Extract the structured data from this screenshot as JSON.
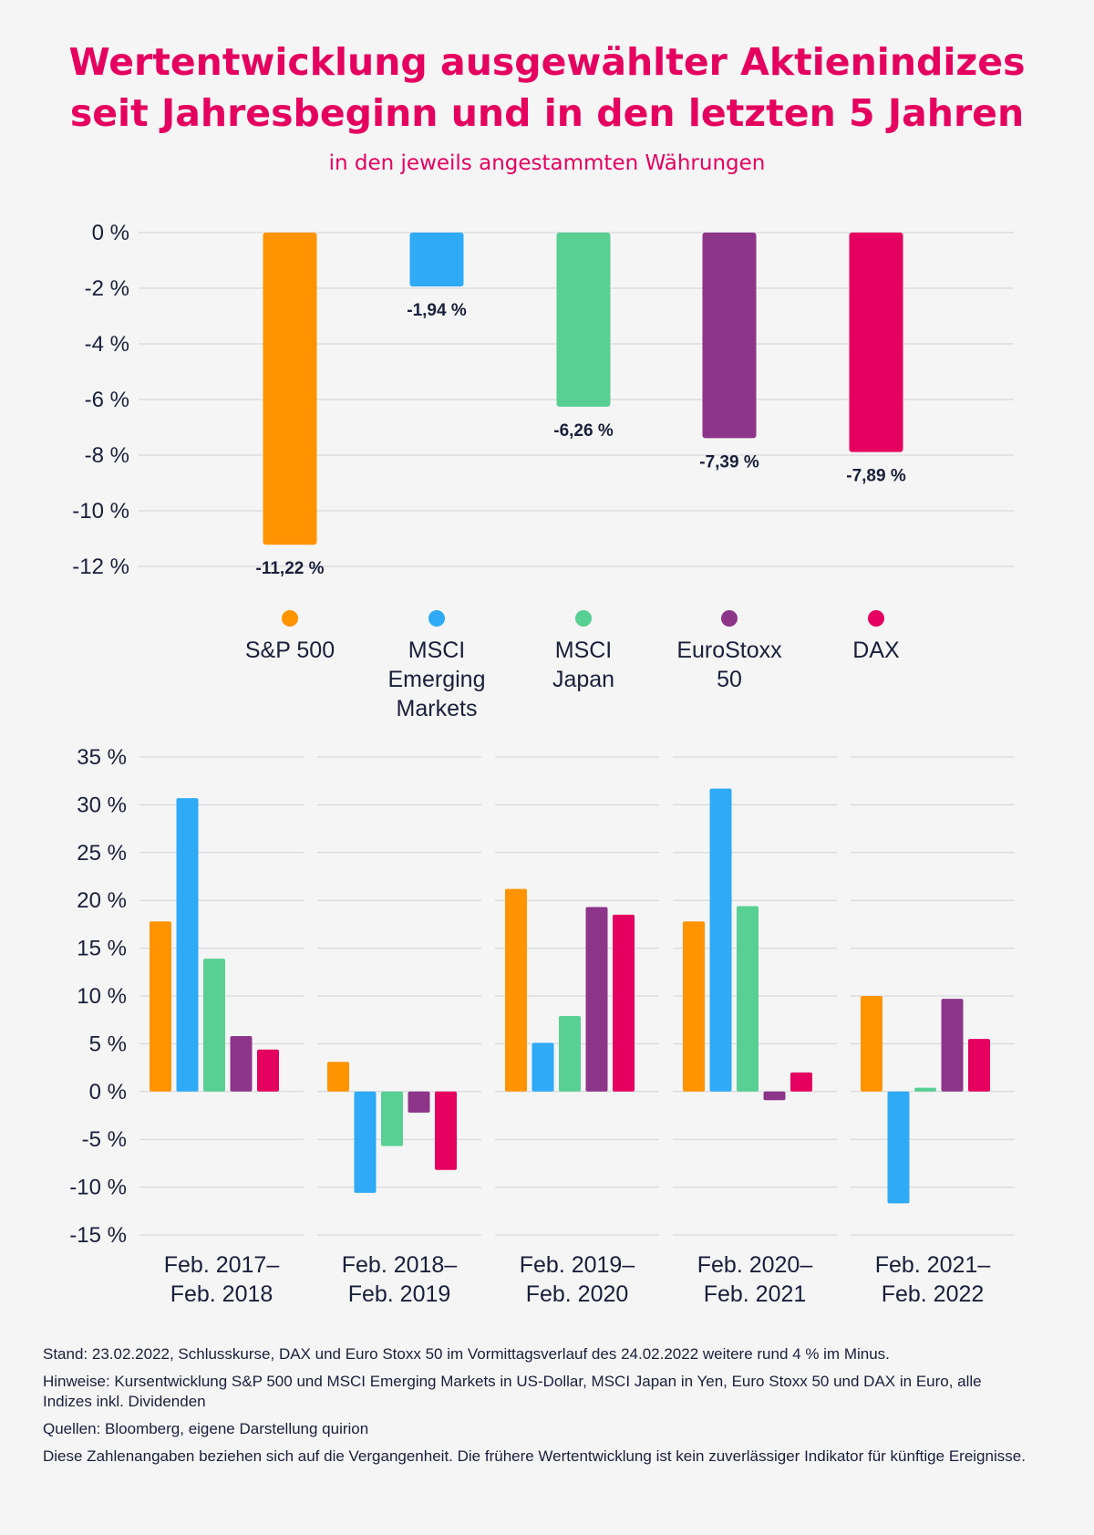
{
  "header": {
    "title_line1": "Wertentwicklung ausgewählter Aktienindizes",
    "title_line2": "seit Jahresbeginn und in den letzten 5 Jahren",
    "subtitle": "in den jeweils angestammten Währungen"
  },
  "chart_data": [
    {
      "type": "bar",
      "title": "",
      "categories": [
        "S&P 500",
        "MSCI Emerging Markets",
        "MSCI Japan",
        "EuroStoxx 50",
        "DAX"
      ],
      "values": [
        -11.22,
        -1.94,
        -6.26,
        -7.39,
        -7.89
      ],
      "value_labels": [
        "-11,22 %",
        "-1,94 %",
        "-6,26 %",
        "-7,39 %",
        "-7,89 %"
      ],
      "colors": [
        "#ff9300",
        "#2eaaf7",
        "#58cf93",
        "#8c3589",
        "#e5005f"
      ],
      "ylim": [
        -12,
        0
      ],
      "yticks": [
        0,
        -2,
        -4,
        -6,
        -8,
        -10,
        -12
      ],
      "ytick_labels": [
        "0 %",
        "-2 %",
        "-4 %",
        "-6 %",
        "-8 %",
        "-10 %",
        "-12 %"
      ],
      "grid": true,
      "legend": {
        "position": "bottom",
        "items": [
          "S&P 500",
          "MSCI\nEmerging\nMarkets",
          "MSCI\nJapan",
          "EuroStoxx 50",
          "DAX"
        ]
      }
    },
    {
      "type": "bar",
      "title": "",
      "categories": [
        "Feb. 2017–\nFeb. 2018",
        "Feb. 2018–\nFeb. 2019",
        "Feb. 2019–\nFeb. 2020",
        "Feb. 2020–\nFeb. 2021",
        "Feb. 2021–\nFeb. 2022"
      ],
      "series": [
        {
          "name": "S&P 500",
          "color": "#ff9300",
          "values": [
            17.8,
            3.1,
            21.2,
            17.8,
            10.0
          ]
        },
        {
          "name": "MSCI Emerging Markets",
          "color": "#2eaaf7",
          "values": [
            30.7,
            -10.6,
            5.1,
            31.7,
            -11.7
          ]
        },
        {
          "name": "MSCI Japan",
          "color": "#58cf93",
          "values": [
            13.9,
            -5.7,
            7.9,
            19.4,
            0.4
          ]
        },
        {
          "name": "EuroStoxx 50",
          "color": "#8c3589",
          "values": [
            5.8,
            -2.2,
            19.3,
            -0.9,
            9.7
          ]
        },
        {
          "name": "DAX",
          "color": "#e5005f",
          "values": [
            4.4,
            -8.2,
            18.5,
            2.0,
            5.5
          ]
        }
      ],
      "ylim": [
        -15,
        35
      ],
      "yticks": [
        35,
        30,
        25,
        20,
        15,
        10,
        5,
        0,
        -5,
        -10,
        -15
      ],
      "ytick_labels": [
        "35 %",
        "30 %",
        "25 %",
        "20 %",
        "15 %",
        "10 %",
        "5 %",
        "0 %",
        "-5 %",
        "-10 %",
        "-15 %"
      ],
      "grid": true
    }
  ],
  "footer": {
    "stand": "Stand: 23.02.2022, Schlusskurse, DAX und Euro Stoxx 50 im Vormittagsverlauf des 24.02.2022 weitere rund 4 % im Minus.",
    "hinweise": "Hinweise: Kursentwicklung S&P 500 und MSCI Emerging Markets in US-Dollar, MSCI Japan in Yen, Euro Stoxx 50 und DAX in Euro, alle Indizes inkl. Dividenden",
    "quellen": "Quellen: Bloomberg, eigene Darstellung quirion",
    "disclaimer": "Diese Zahlenangaben beziehen sich auf die Vergangenheit. Die frühere Wertentwicklung ist kein zuverlässiger Indikator für künftige Ereignisse."
  }
}
